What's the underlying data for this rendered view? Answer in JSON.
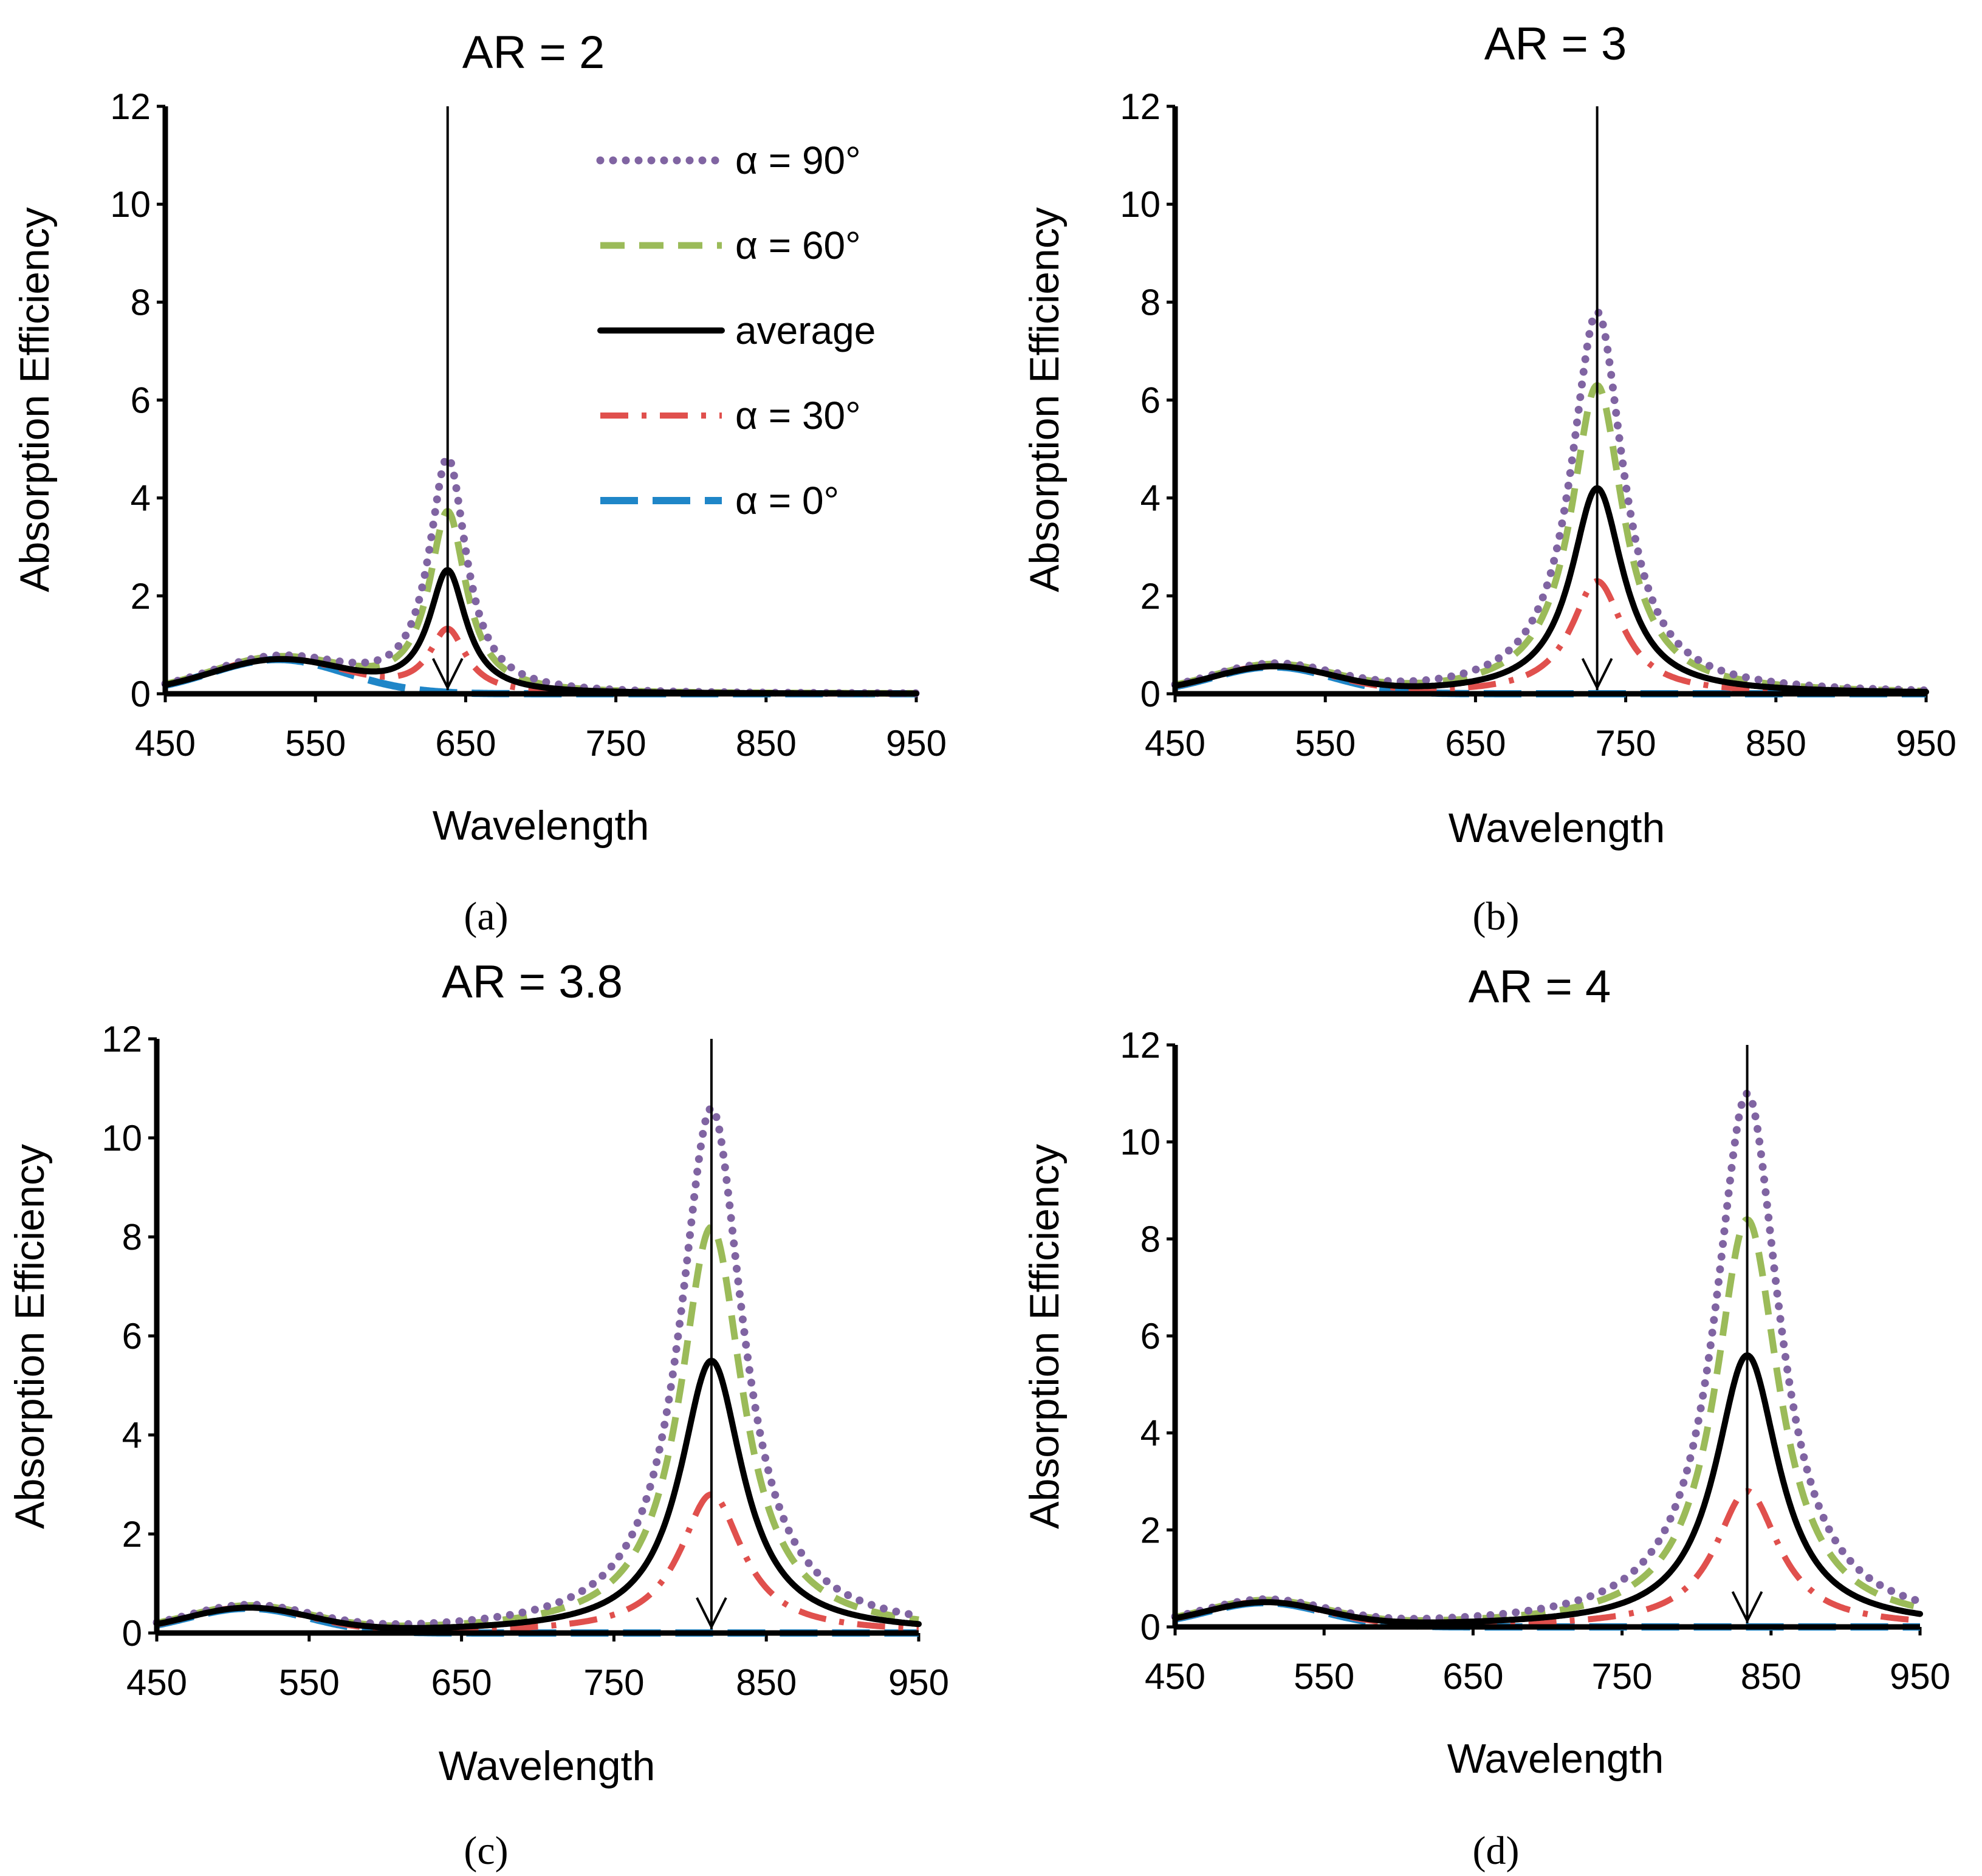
{
  "colors": {
    "a90": "#8064a2",
    "a60": "#9bbb59",
    "avg": "#000000",
    "a30": "#e0504d",
    "a0": "#1f86c8"
  },
  "legend": [
    {
      "key": "a90",
      "label": "α = 90°"
    },
    {
      "key": "a60",
      "label": "α = 60°"
    },
    {
      "key": "avg",
      "label": "average"
    },
    {
      "key": "a30",
      "label": "α = 30°"
    },
    {
      "key": "a0",
      "label": "α = 0°"
    }
  ],
  "chart_data": [
    {
      "type": "line",
      "panel_label": "(a)",
      "title": "AR = 2",
      "xlabel": "Wavelength",
      "ylabel": "Absorption Efficiency",
      "xlim": [
        450,
        950
      ],
      "ylim": [
        0,
        12
      ],
      "xticks": [
        "450",
        "550",
        "650",
        "750",
        "850",
        "950"
      ],
      "yticks": [
        "0",
        "2",
        "4",
        "6",
        "8",
        "10",
        "12"
      ],
      "peak_wavelength": 638,
      "transverse": {
        "center": 525,
        "height": 0.7,
        "width": 45
      },
      "series": [
        {
          "key": "a90",
          "name": "α = 90°",
          "peak": 4.8,
          "hwhm": 15
        },
        {
          "key": "a60",
          "name": "α = 60°",
          "peak": 3.7,
          "hwhm": 15
        },
        {
          "key": "avg",
          "name": "average",
          "peak": 2.5,
          "hwhm": 15
        },
        {
          "key": "a30",
          "name": "α = 30°",
          "peak": 1.3,
          "hwhm": 15
        },
        {
          "key": "a0",
          "name": "α = 0°",
          "peak": 0.0,
          "hwhm": 15
        }
      ],
      "legend_position": "top-right"
    },
    {
      "type": "line",
      "panel_label": "(b)",
      "title": "AR = 3",
      "xlabel": "Wavelength",
      "ylabel": "Absorption Efficiency",
      "xlim": [
        450,
        950
      ],
      "ylim": [
        0,
        12
      ],
      "xticks": [
        "450",
        "550",
        "650",
        "750",
        "850",
        "950"
      ],
      "yticks": [
        "0",
        "2",
        "4",
        "6",
        "8",
        "10",
        "12"
      ],
      "peak_wavelength": 731,
      "transverse": {
        "center": 515,
        "height": 0.55,
        "width": 40
      },
      "series": [
        {
          "key": "a90",
          "name": "α = 90°",
          "peak": 7.8,
          "hwhm": 21
        },
        {
          "key": "a60",
          "name": "α = 60°",
          "peak": 6.3,
          "hwhm": 21
        },
        {
          "key": "avg",
          "name": "average",
          "peak": 4.2,
          "hwhm": 21
        },
        {
          "key": "a30",
          "name": "α = 30°",
          "peak": 2.3,
          "hwhm": 21
        },
        {
          "key": "a0",
          "name": "α = 0°",
          "peak": 0.0,
          "hwhm": 21
        }
      ]
    },
    {
      "type": "line",
      "panel_label": "(c)",
      "title": "AR = 3.8",
      "xlabel": "Wavelength",
      "ylabel": "Absorption Efficiency",
      "xlim": [
        450,
        950
      ],
      "ylim": [
        0,
        12
      ],
      "xticks": [
        "450",
        "550",
        "650",
        "750",
        "850",
        "950"
      ],
      "yticks": [
        "0",
        "2",
        "4",
        "6",
        "8",
        "10",
        "12"
      ],
      "peak_wavelength": 814,
      "transverse": {
        "center": 510,
        "height": 0.5,
        "width": 40
      },
      "series": [
        {
          "key": "a90",
          "name": "α = 90°",
          "peak": 10.6,
          "hwhm": 25
        },
        {
          "key": "a60",
          "name": "α = 60°",
          "peak": 8.2,
          "hwhm": 25
        },
        {
          "key": "avg",
          "name": "average",
          "peak": 5.5,
          "hwhm": 25
        },
        {
          "key": "a30",
          "name": "α = 30°",
          "peak": 2.8,
          "hwhm": 25
        },
        {
          "key": "a0",
          "name": "α = 0°",
          "peak": 0.0,
          "hwhm": 25
        }
      ]
    },
    {
      "type": "line",
      "panel_label": "(d)",
      "title": "AR = 4",
      "xlabel": "Wavelength",
      "ylabel": "Absorption Efficiency",
      "xlim": [
        450,
        950
      ],
      "ylim": [
        0,
        12
      ],
      "xticks": [
        "450",
        "550",
        "650",
        "750",
        "850",
        "950"
      ],
      "yticks": [
        "0",
        "2",
        "4",
        "6",
        "8",
        "10",
        "12"
      ],
      "peak_wavelength": 834,
      "transverse": {
        "center": 510,
        "height": 0.5,
        "width": 40
      },
      "series": [
        {
          "key": "a90",
          "name": "α = 90°",
          "peak": 11.0,
          "hwhm": 26
        },
        {
          "key": "a60",
          "name": "α = 60°",
          "peak": 8.4,
          "hwhm": 26
        },
        {
          "key": "avg",
          "name": "average",
          "peak": 5.6,
          "hwhm": 26
        },
        {
          "key": "a30",
          "name": "α = 30°",
          "peak": 2.8,
          "hwhm": 26
        },
        {
          "key": "a0",
          "name": "α = 0°",
          "peak": 0.0,
          "hwhm": 26
        }
      ]
    }
  ]
}
